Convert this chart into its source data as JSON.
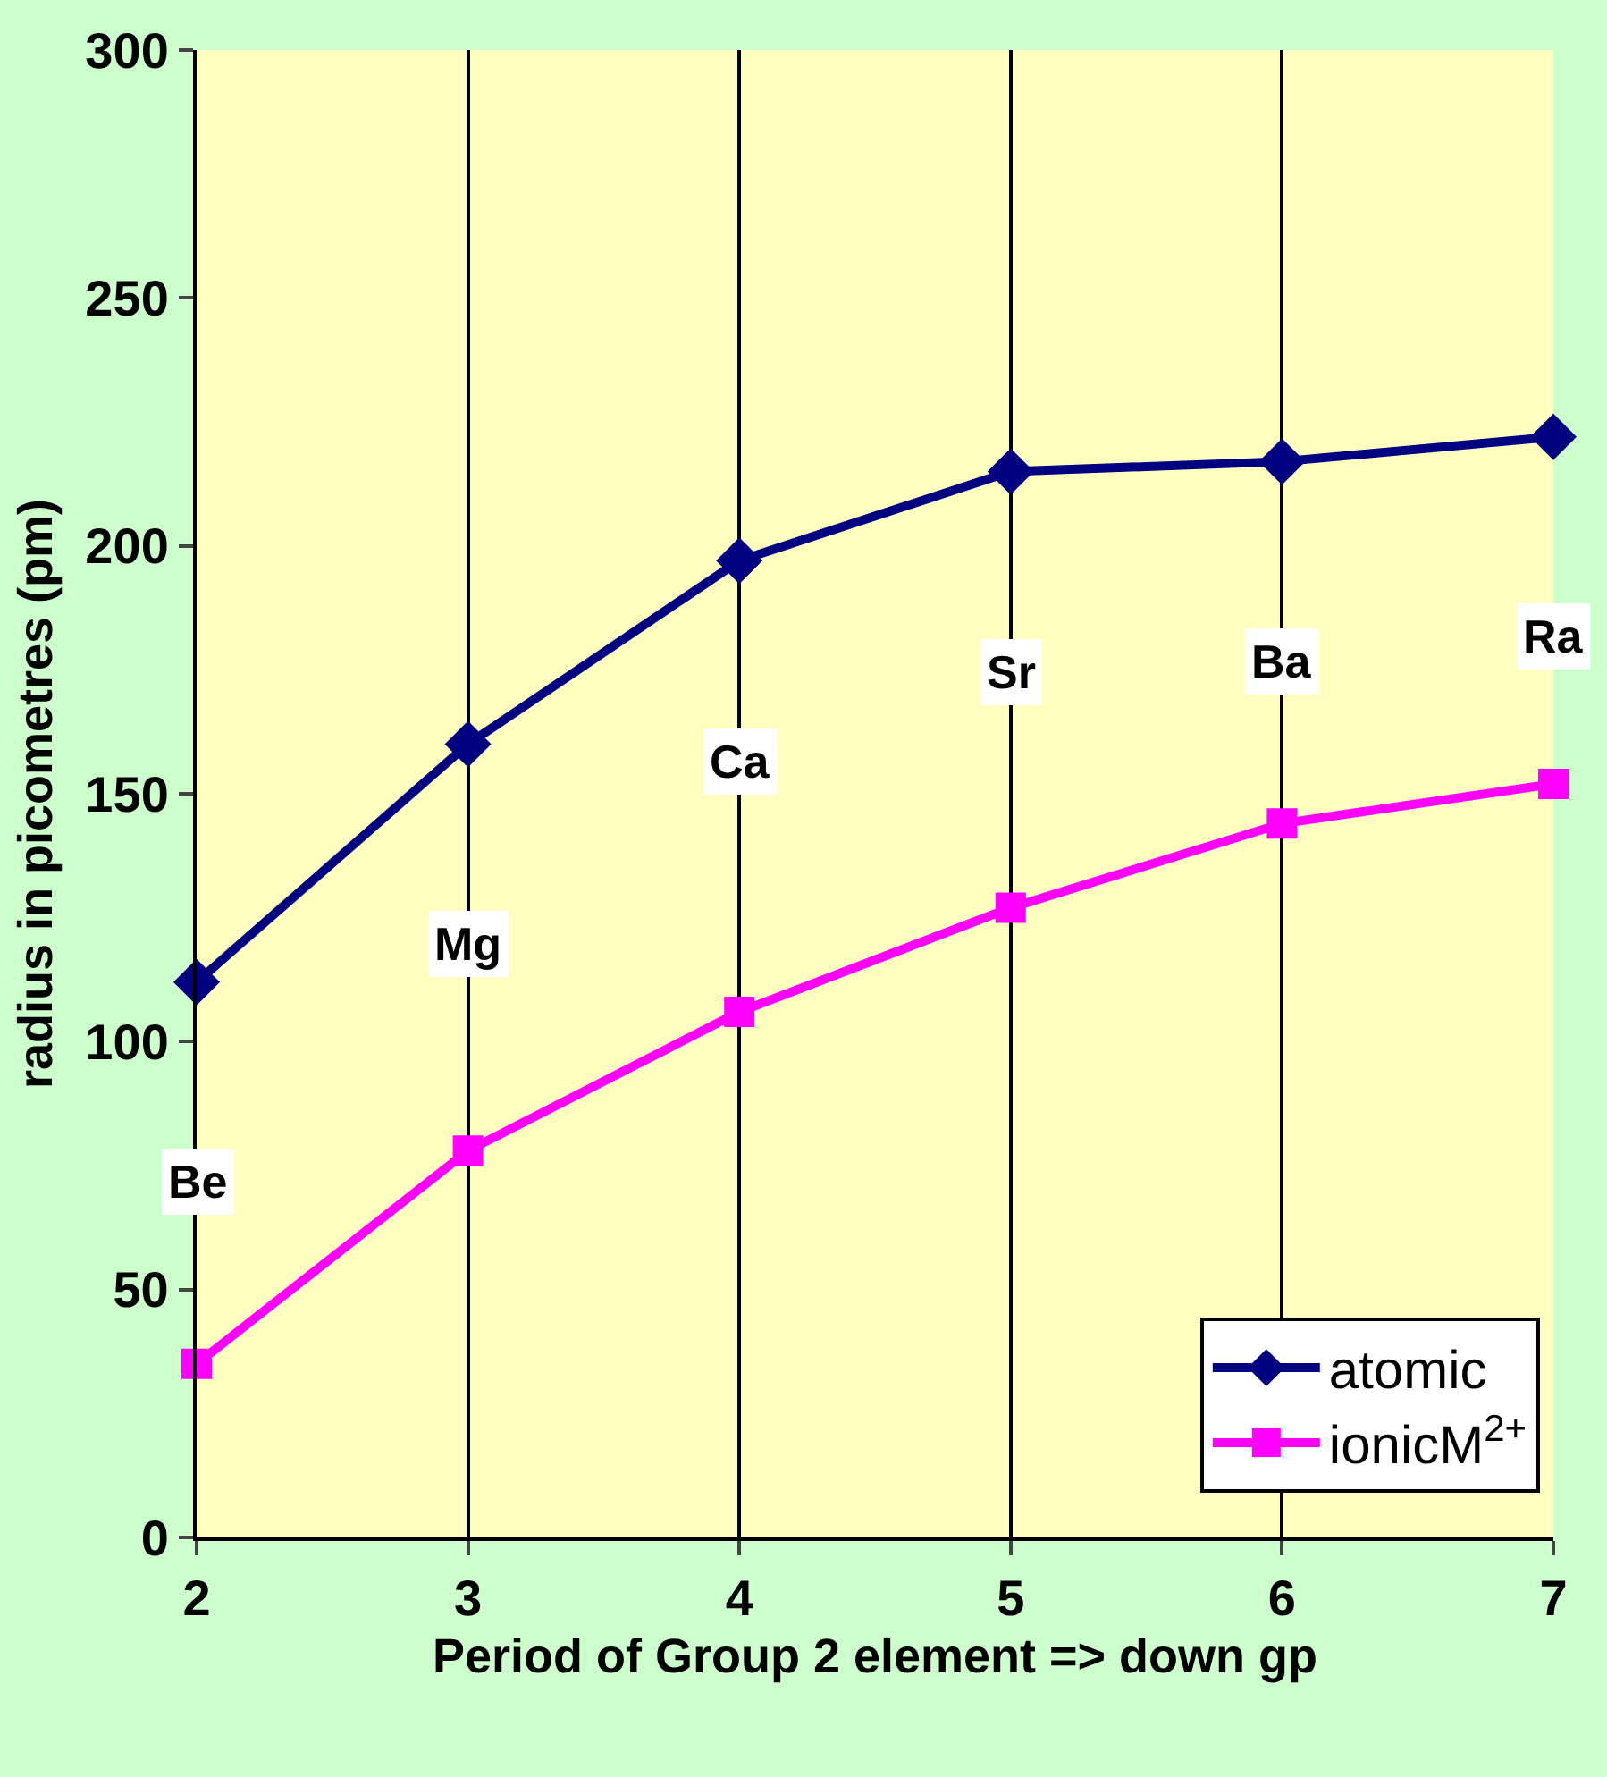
{
  "chart_data": {
    "type": "line",
    "xlabel": "Period of Group 2 element => down gp",
    "ylabel": "radius in picometres (pm)",
    "x": [
      2,
      3,
      4,
      5,
      6,
      7
    ],
    "series": [
      {
        "name": "atomic",
        "color": "#000080",
        "marker": "diamond",
        "values": [
          112,
          160,
          197,
          215,
          217,
          222
        ]
      },
      {
        "name": "ionicM$^{2+}$",
        "color": "#ff00ff",
        "marker": "square",
        "values": [
          35,
          78,
          106,
          127,
          144,
          152
        ]
      }
    ],
    "annotations": [
      "Be",
      "Mg",
      "Ca",
      "Sr",
      "Ba",
      "Ra"
    ],
    "xlim": [
      2,
      7
    ],
    "xticks": [
      2,
      3,
      4,
      5,
      6,
      7
    ],
    "ylim": [
      0,
      300
    ],
    "yticks": [
      0,
      50,
      100,
      150,
      200,
      250,
      300
    ],
    "grid": "x",
    "legend": "bottom right",
    "line_style": "solid"
  }
}
